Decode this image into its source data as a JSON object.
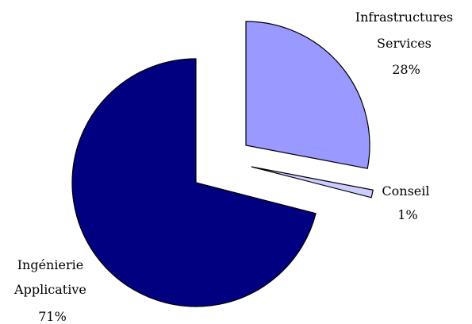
{
  "chart_data": {
    "type": "pie",
    "title": "",
    "exploded": true,
    "slices": [
      {
        "label_lines": [
          "Infrastructures",
          "Services"
        ],
        "value": 28,
        "value_text": "28%",
        "color": "#9999ff"
      },
      {
        "label_lines": [
          "Conseil"
        ],
        "value": 1,
        "value_text": "1%",
        "color": "#ccccff"
      },
      {
        "label_lines": [
          "Ingénierie",
          "Applicative"
        ],
        "value": 71,
        "value_text": "71%",
        "color": "#000080"
      }
    ]
  }
}
